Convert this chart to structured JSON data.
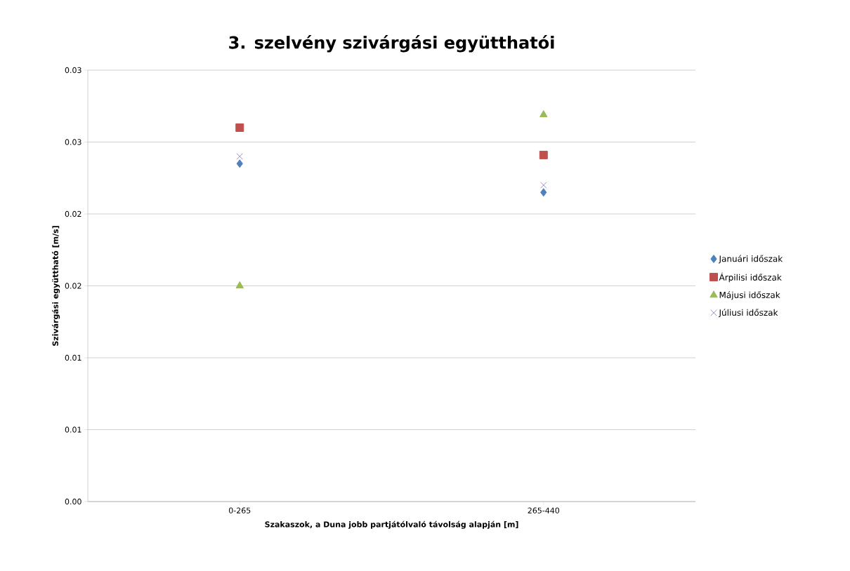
{
  "chart_data": {
    "type": "scatter",
    "title": "3. szelvény szivárgási együtthatói",
    "xlabel": "Szakaszok,  a Duna jobb partjátólvaló távolság alapján  [m]",
    "ylabel": "Szivárgási együttható  [m/s]",
    "categories": [
      "0-265",
      "265-440"
    ],
    "ylim": [
      0,
      0.03
    ],
    "yticks": [
      {
        "value": 0,
        "label": "0.00"
      },
      {
        "value": 0.005,
        "label": "0.01"
      },
      {
        "value": 0.01,
        "label": "0.01"
      },
      {
        "value": 0.015,
        "label": "0.02"
      },
      {
        "value": 0.02,
        "label": "0.02"
      },
      {
        "value": 0.025,
        "label": "0.03"
      },
      {
        "value": 0.03,
        "label": "0.03"
      }
    ],
    "grid": "y",
    "legend": "right",
    "series": [
      {
        "name": "Januári időszak",
        "color": "#4f81bd",
        "marker": "diamond",
        "values": [
          0.0235,
          0.0215
        ]
      },
      {
        "name": "Árpilisi időszak",
        "color": "#c0504d",
        "marker": "square",
        "values": [
          0.026,
          0.0241
        ]
      },
      {
        "name": "Májusi időszak",
        "color": "#9bbb59",
        "marker": "triangle",
        "values": [
          0.015,
          0.0269
        ]
      },
      {
        "name": "Júliusi időszak",
        "color": "#a08cc8",
        "marker": "cross",
        "values": [
          0.024,
          0.022
        ]
      }
    ]
  }
}
